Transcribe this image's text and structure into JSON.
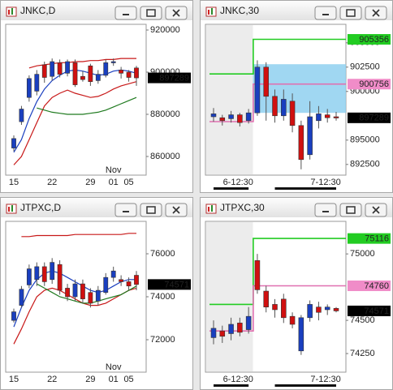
{
  "windows": [
    {
      "title": "JNKC,D",
      "chart": {
        "type": "candlestick",
        "ylim": [
          851150,
          922700
        ],
        "yticks": [
          860000,
          880000,
          900000,
          920000
        ],
        "categories": [
          "15",
          null,
          null,
          null,
          null,
          "22",
          null,
          null,
          null,
          null,
          "29",
          null,
          null,
          "01",
          null,
          "05",
          null
        ],
        "annotations": [
          "Nov"
        ],
        "open": [
          864000,
          876500,
          888000,
          891000,
          903500,
          898000,
          904500,
          899500,
          904500,
          898000,
          903000,
          896000,
          898500,
          904500,
          901000,
          900000,
          902000
        ],
        "high": [
          870000,
          884000,
          898500,
          901000,
          905000,
          906500,
          906000,
          906000,
          906000,
          900500,
          904000,
          901000,
          906000,
          906500,
          902500,
          901000,
          903000
        ],
        "low": [
          862500,
          875000,
          886000,
          889000,
          895000,
          896000,
          897500,
          898000,
          893000,
          895500,
          893500,
          894500,
          897500,
          903000,
          897000,
          895500,
          893500
        ],
        "close": [
          868500,
          882500,
          897000,
          899000,
          897500,
          905000,
          899000,
          905000,
          894000,
          896500,
          895500,
          899000,
          904500,
          905000,
          899500,
          897500,
          897289
        ],
        "up_color": "#1a3fbf",
        "down_color": "#d01010",
        "series": [
          {
            "color": "#c81818",
            "values": [
              null,
              null,
              902000,
              903000,
              903500,
              904000,
              904500,
              904500,
              905000,
              905000,
              905500,
              905500,
              906000,
              906000,
              906500,
              906500,
              906500
            ]
          },
          {
            "color": "#1a3fbf",
            "values": [
              862000,
              868000,
              878000,
              886000,
              892000,
              896000,
              898500,
              900500,
              901000,
              900500,
              899500,
              898500,
              899000,
              900500,
              901000,
              900500,
              899500
            ]
          },
          {
            "color": "#c81818",
            "values": [
              856000,
              860000,
              868000,
              876000,
              884000,
              888000,
              890000,
              891500,
              890000,
              889000,
              888000,
              888500,
              890000,
              892000,
              893500,
              894500,
              895500
            ]
          },
          {
            "color": "#1f7a1f",
            "values": [
              null,
              null,
              null,
              883000,
              882000,
              881000,
              880500,
              880000,
              880000,
              880000,
              880500,
              881000,
              882000,
              883500,
              885000,
              886500,
              888000
            ]
          }
        ],
        "price_labels": [
          {
            "value": 897289,
            "color": "#000000"
          }
        ]
      }
    },
    {
      "title": "JNKC,30",
      "chart": {
        "type": "candlestick",
        "ylim": [
          891400,
          906900
        ],
        "yticks": [
          892500,
          895000,
          900000,
          902500,
          905000
        ],
        "categories": [
          null,
          null,
          "6-12:30",
          null,
          null,
          null,
          null,
          null,
          null,
          null,
          null,
          null,
          "7-12:30",
          null,
          null
        ],
        "open": [
          897400,
          897300,
          897200,
          897600,
          897000,
          897800,
          902500,
          899500,
          897500,
          899000,
          896500,
          893500,
          897000,
          897600,
          897400
        ],
        "high": [
          898300,
          897600,
          898000,
          897800,
          898200,
          903200,
          903000,
          900200,
          900200,
          899800,
          897000,
          899000,
          898500,
          898200,
          897900
        ],
        "low": [
          896900,
          896500,
          896800,
          896400,
          896700,
          897500,
          897000,
          896800,
          897000,
          895800,
          892000,
          893000,
          896200,
          896800,
          897000
        ],
        "close": [
          897700,
          897000,
          897600,
          896800,
          897800,
          902500,
          899500,
          897500,
          899200,
          896500,
          893000,
          897400,
          897700,
          897300,
          897289
        ],
        "up_color": "#1a3fbf",
        "down_color": "#d01010",
        "step": true,
        "zone": {
          "from": 897800,
          "to": 902800,
          "color": "#8fd0f0"
        },
        "series": [
          {
            "color": "#22cc22",
            "values": [
              901800,
              901800,
              901800,
              901800,
              901800,
              905356,
              905356,
              905356,
              905356,
              905356,
              905356,
              905356,
              905356,
              905356,
              905356
            ]
          },
          {
            "color": "#e070b0",
            "values": [
              896900,
              896900,
              896900,
              896900,
              896900,
              900756,
              900756,
              900756,
              900756,
              900756,
              900756,
              900756,
              900756,
              900756,
              900756
            ]
          }
        ],
        "price_labels": [
          {
            "value": 905356,
            "color": "#22cc22"
          },
          {
            "value": 900756,
            "color": "#f08cc8"
          },
          {
            "value": 897289,
            "color": "#000000"
          }
        ]
      }
    },
    {
      "title": "JTPXC,D",
      "chart": {
        "type": "candlestick",
        "ylim": [
          70490,
          77510
        ],
        "yticks": [
          72000,
          74000,
          76000
        ],
        "categories": [
          "15",
          null,
          null,
          null,
          null,
          "22",
          null,
          null,
          null,
          null,
          "29",
          null,
          null,
          "01",
          null,
          "05",
          null
        ],
        "annotations": [
          "Nov"
        ],
        "open": [
          72900,
          73600,
          74550,
          74800,
          75400,
          74800,
          75500,
          74400,
          74000,
          74600,
          74200,
          73800,
          74200,
          74900,
          74800,
          74700,
          75000
        ],
        "high": [
          73450,
          74500,
          75500,
          75600,
          75600,
          75800,
          75700,
          74600,
          74800,
          74800,
          74400,
          74500,
          75100,
          75400,
          75000,
          74900,
          75200
        ],
        "low": [
          72800,
          73500,
          74400,
          74500,
          74500,
          74600,
          74100,
          73800,
          73800,
          73700,
          73500,
          73600,
          74100,
          74700,
          74500,
          74300,
          74300
        ],
        "close": [
          73300,
          74350,
          75300,
          75400,
          74700,
          75600,
          74300,
          74000,
          74600,
          73900,
          73700,
          74300,
          74900,
          75200,
          74700,
          74500,
          74571
        ],
        "up_color": "#1a3fbf",
        "down_color": "#d01010",
        "series": [
          {
            "color": "#c81818",
            "values": [
              null,
              76800,
              76800,
              76850,
              76850,
              76850,
              76850,
              76850,
              76900,
              76900,
              76900,
              76900,
              76900,
              76900,
              76900,
              76950,
              76950
            ]
          },
          {
            "color": "#1a3fbf",
            "values": [
              72600,
              73500,
              74300,
              74800,
              75100,
              75200,
              75100,
              74900,
              74700,
              74500,
              74300,
              74200,
              74300,
              74500,
              74700,
              74800,
              74800
            ]
          },
          {
            "color": "#c81818",
            "values": [
              71800,
              72500,
              73300,
              74000,
              74300,
              74400,
              74300,
              74100,
              73900,
              73700,
              73600,
              73600,
              73700,
              73900,
              74100,
              74300,
              74400
            ]
          },
          {
            "color": "#1f7a1f",
            "values": [
              null,
              null,
              null,
              74600,
              74400,
              74200,
              74000,
              73900,
              73800,
              73700,
              73700,
              73800,
              73900,
              74000,
              74100,
              74300,
              74500
            ]
          }
        ],
        "price_labels": [
          {
            "value": 74571,
            "color": "#000000"
          }
        ]
      }
    },
    {
      "title": "JTPXC,30",
      "chart": {
        "type": "candlestick",
        "ylim": [
          74110,
          75245
        ],
        "yticks": [
          74250,
          74500,
          75000
        ],
        "categories": [
          null,
          null,
          "6-12:30",
          null,
          null,
          null,
          null,
          null,
          null,
          null,
          null,
          null,
          "7-12:30",
          null,
          null
        ],
        "open": [
          74370,
          74420,
          74400,
          74480,
          74430,
          74950,
          74720,
          74620,
          74660,
          74530,
          74270,
          74520,
          74600,
          74580,
          74590
        ],
        "high": [
          74500,
          74460,
          74520,
          74520,
          74600,
          75000,
          74760,
          74660,
          74700,
          74560,
          74540,
          74650,
          74640,
          74620,
          74600
        ],
        "low": [
          74320,
          74330,
          74350,
          74380,
          74400,
          74700,
          74560,
          74520,
          74480,
          74440,
          74240,
          74490,
          74500,
          74540,
          74560
        ],
        "close": [
          74440,
          74380,
          74470,
          74410,
          74530,
          74730,
          74600,
          74580,
          74520,
          74470,
          74520,
          74620,
          74560,
          74600,
          74571
        ],
        "up_color": "#1a3fbf",
        "down_color": "#d01010",
        "step": true,
        "series": [
          {
            "color": "#22cc22",
            "values": [
              74620,
              74620,
              74620,
              74620,
              74620,
              75116,
              75116,
              75116,
              75116,
              75116,
              75116,
              75116,
              75116,
              75116,
              75116
            ]
          },
          {
            "color": "#e070b0",
            "values": [
              74420,
              74420,
              74420,
              74420,
              74420,
              74760,
              74760,
              74760,
              74760,
              74760,
              74760,
              74760,
              74760,
              74760,
              74760
            ]
          }
        ],
        "price_labels": [
          {
            "value": 75116,
            "color": "#22cc22"
          },
          {
            "value": 74760,
            "color": "#f08cc8"
          },
          {
            "value": 74571,
            "color": "#000000"
          }
        ]
      }
    }
  ]
}
